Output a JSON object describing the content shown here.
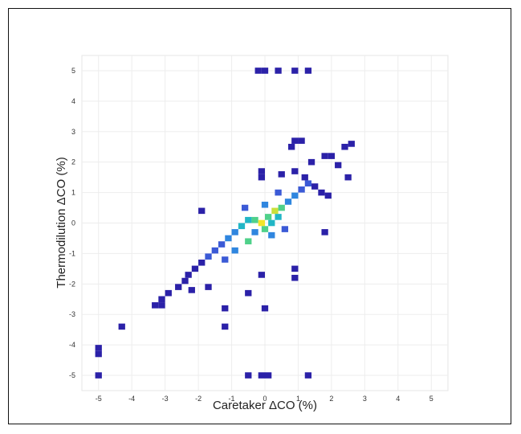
{
  "chart_data": {
    "type": "heatmap",
    "title": "",
    "xlabel": "Caretaker ΔCO (%)",
    "ylabel": "Thermodilution ΔCO (%)",
    "xlim": [
      -5.5,
      5.5
    ],
    "ylim": [
      -5.5,
      5.5
    ],
    "x_ticks": [
      "-5",
      "-4",
      "-3",
      "-2",
      "-1",
      "0",
      "1",
      "2",
      "3",
      "4",
      "5"
    ],
    "y_ticks": [
      "-5",
      "-4",
      "-3",
      "-2",
      "-1",
      "0",
      "1",
      "2",
      "3",
      "4",
      "5"
    ],
    "grid": true,
    "bin_size": 0.2,
    "colormap": [
      "#2b21a8",
      "#3b5ad6",
      "#2f86df",
      "#21b6c6",
      "#4fd18a",
      "#c9e03a",
      "#f3e52a"
    ],
    "cells": [
      {
        "x": -0.2,
        "y": 5.0,
        "v": 0.0
      },
      {
        "x": 0.0,
        "y": 5.0,
        "v": 0.0
      },
      {
        "x": 0.4,
        "y": 5.0,
        "v": 0.0
      },
      {
        "x": 0.9,
        "y": 5.0,
        "v": 0.0
      },
      {
        "x": 1.3,
        "y": 5.0,
        "v": 0.0
      },
      {
        "x": 2.6,
        "y": 2.6,
        "v": 0.0
      },
      {
        "x": 2.4,
        "y": 2.5,
        "v": 0.0
      },
      {
        "x": 0.9,
        "y": 2.7,
        "v": 0.0
      },
      {
        "x": 1.1,
        "y": 2.7,
        "v": 0.0
      },
      {
        "x": 0.8,
        "y": 2.5,
        "v": 0.0
      },
      {
        "x": 1.8,
        "y": 2.2,
        "v": 0.0
      },
      {
        "x": 2.0,
        "y": 2.2,
        "v": 0.0
      },
      {
        "x": 1.4,
        "y": 2.0,
        "v": 0.0
      },
      {
        "x": 2.2,
        "y": 1.9,
        "v": 0.0
      },
      {
        "x": 2.5,
        "y": 1.5,
        "v": 0.0
      },
      {
        "x": -0.1,
        "y": 1.7,
        "v": 0.0
      },
      {
        "x": -0.1,
        "y": 1.5,
        "v": 0.0
      },
      {
        "x": 0.5,
        "y": 1.6,
        "v": 0.0
      },
      {
        "x": 0.9,
        "y": 1.7,
        "v": 0.0
      },
      {
        "x": 1.2,
        "y": 1.5,
        "v": 0.0
      },
      {
        "x": -1.9,
        "y": 0.4,
        "v": 0.0
      },
      {
        "x": 1.8,
        "y": -0.3,
        "v": 0.0
      },
      {
        "x": 0.9,
        "y": -1.5,
        "v": 0.0
      },
      {
        "x": 0.9,
        "y": -1.8,
        "v": 0.0
      },
      {
        "x": -0.1,
        "y": -1.7,
        "v": 0.0
      },
      {
        "x": 0.0,
        "y": -2.8,
        "v": 0.0
      },
      {
        "x": -0.5,
        "y": -2.3,
        "v": 0.0
      },
      {
        "x": -1.2,
        "y": -2.8,
        "v": 0.0
      },
      {
        "x": -1.2,
        "y": -3.4,
        "v": 0.0
      },
      {
        "x": -4.3,
        "y": -3.4,
        "v": 0.0
      },
      {
        "x": -5.0,
        "y": -4.1,
        "v": 0.0
      },
      {
        "x": -5.0,
        "y": -4.3,
        "v": 0.0
      },
      {
        "x": -5.0,
        "y": -5.0,
        "v": 0.0
      },
      {
        "x": -0.5,
        "y": -5.0,
        "v": 0.0
      },
      {
        "x": -0.1,
        "y": -5.0,
        "v": 0.0
      },
      {
        "x": 0.1,
        "y": -5.0,
        "v": 0.0
      },
      {
        "x": 1.3,
        "y": -5.0,
        "v": 0.0
      },
      {
        "x": -3.3,
        "y": -2.7,
        "v": 0.0
      },
      {
        "x": -3.1,
        "y": -2.7,
        "v": 0.0
      },
      {
        "x": -3.1,
        "y": -2.5,
        "v": 0.0
      },
      {
        "x": -2.9,
        "y": -2.3,
        "v": 0.0
      },
      {
        "x": -2.6,
        "y": -2.1,
        "v": 0.0
      },
      {
        "x": -2.4,
        "y": -1.9,
        "v": 0.0
      },
      {
        "x": -2.3,
        "y": -1.7,
        "v": 0.0
      },
      {
        "x": -2.2,
        "y": -2.2,
        "v": 0.0
      },
      {
        "x": -1.7,
        "y": -2.1,
        "v": 0.0
      },
      {
        "x": -2.1,
        "y": -1.5,
        "v": 0.0
      },
      {
        "x": -1.9,
        "y": -1.3,
        "v": 0.0
      },
      {
        "x": -1.7,
        "y": -1.1,
        "v": 0.1
      },
      {
        "x": -1.5,
        "y": -0.9,
        "v": 0.1
      },
      {
        "x": -1.3,
        "y": -0.7,
        "v": 0.2
      },
      {
        "x": -1.1,
        "y": -0.5,
        "v": 0.3
      },
      {
        "x": -0.9,
        "y": -0.3,
        "v": 0.4
      },
      {
        "x": -0.7,
        "y": -0.1,
        "v": 0.5
      },
      {
        "x": -0.5,
        "y": 0.1,
        "v": 0.5
      },
      {
        "x": -0.3,
        "y": 0.1,
        "v": 0.6
      },
      {
        "x": -0.1,
        "y": 0.0,
        "v": 1.0
      },
      {
        "x": 0.1,
        "y": 0.2,
        "v": 0.7
      },
      {
        "x": 0.3,
        "y": 0.4,
        "v": 0.9
      },
      {
        "x": 0.5,
        "y": 0.5,
        "v": 0.6
      },
      {
        "x": 0.7,
        "y": 0.7,
        "v": 0.4
      },
      {
        "x": 0.9,
        "y": 0.9,
        "v": 0.3
      },
      {
        "x": 1.1,
        "y": 1.1,
        "v": 0.2
      },
      {
        "x": 1.3,
        "y": 1.3,
        "v": 0.1
      },
      {
        "x": 1.5,
        "y": 1.2,
        "v": 0.0
      },
      {
        "x": 1.7,
        "y": 1.0,
        "v": 0.0
      },
      {
        "x": 1.9,
        "y": 0.9,
        "v": 0.0
      },
      {
        "x": 0.2,
        "y": -0.4,
        "v": 0.3
      },
      {
        "x": -0.5,
        "y": -0.6,
        "v": 0.6
      },
      {
        "x": -0.3,
        "y": -0.3,
        "v": 0.4
      },
      {
        "x": 0.0,
        "y": 0.6,
        "v": 0.3
      },
      {
        "x": 0.4,
        "y": 1.0,
        "v": 0.2
      },
      {
        "x": -0.6,
        "y": 0.5,
        "v": 0.2
      },
      {
        "x": -0.9,
        "y": -0.9,
        "v": 0.4
      },
      {
        "x": -1.2,
        "y": -1.2,
        "v": 0.2
      },
      {
        "x": 0.6,
        "y": -0.2,
        "v": 0.1
      },
      {
        "x": 0.4,
        "y": 0.2,
        "v": 0.5
      },
      {
        "x": 0.2,
        "y": 0.0,
        "v": 0.5
      },
      {
        "x": 0.0,
        "y": -0.2,
        "v": 0.6
      }
    ]
  }
}
